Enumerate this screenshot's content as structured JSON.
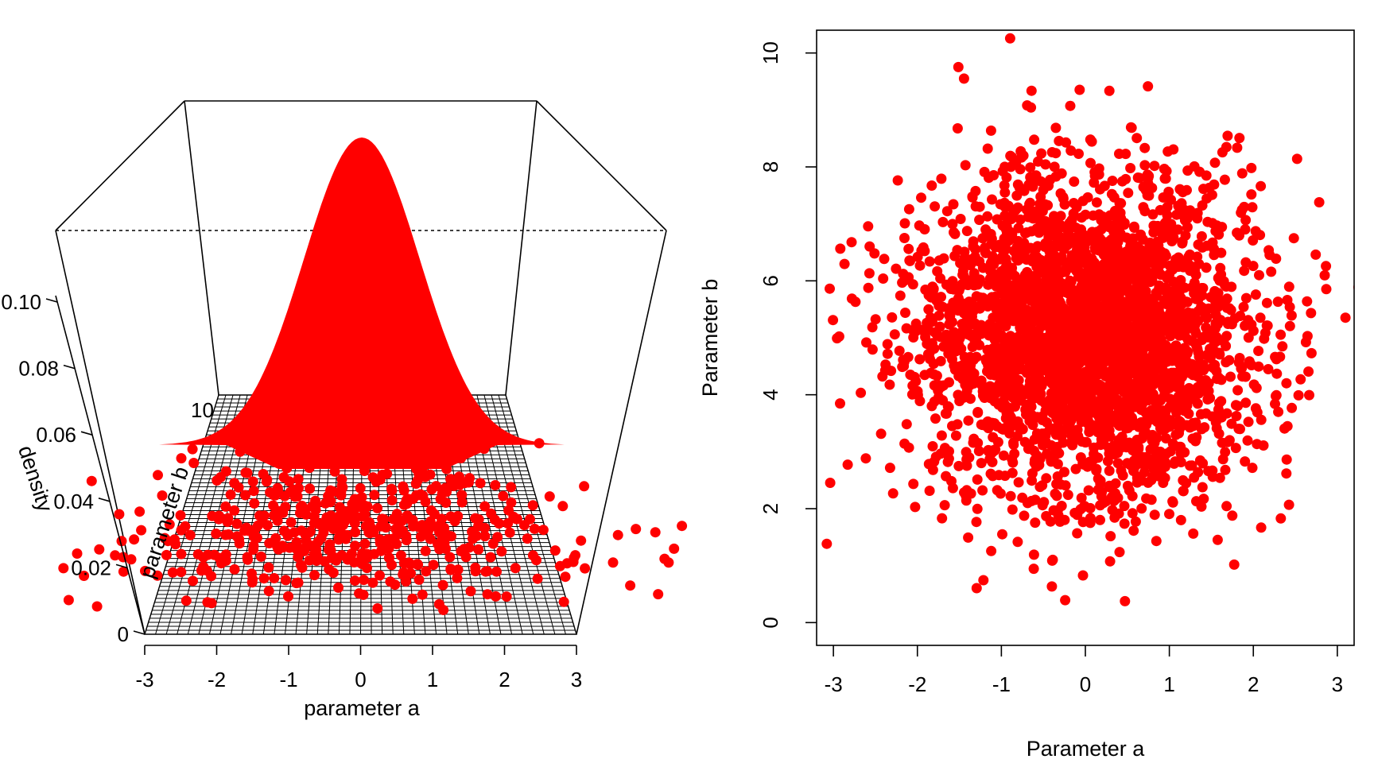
{
  "chart_data": [
    {
      "type": "surface3d",
      "title": "",
      "xlabel": "parameter a",
      "ylabel": "parameter b",
      "zlabel": "density",
      "xlim": [
        -3,
        3
      ],
      "ylim": [
        0,
        10
      ],
      "zlim": [
        0,
        0.12
      ],
      "x_ticks": [
        "-3",
        "-2",
        "-1",
        "0",
        "1",
        "2",
        "3"
      ],
      "y_ticks_visible": [
        "10"
      ],
      "z_ticks": [
        "0",
        "0.02",
        "0.04",
        "0.06",
        "0.08",
        "0.10"
      ],
      "surface": {
        "distribution": "bivariate normal",
        "mean": [
          0,
          5
        ],
        "sd": [
          1,
          1.4
        ],
        "peak_density": 0.113,
        "color": "#ff0000",
        "grid_color": "#000000"
      },
      "points": {
        "color": "#ff0000",
        "description": "posterior samples scattered over the base plane"
      }
    },
    {
      "type": "scatter",
      "title": "",
      "xlabel": "Parameter a",
      "ylabel": "Parameter b",
      "xlim": [
        -3.2,
        3.2
      ],
      "ylim": [
        -0.4,
        10.4
      ],
      "x_ticks": [
        "-3",
        "-2",
        "-1",
        "0",
        "1",
        "2",
        "3"
      ],
      "y_ticks": [
        "0",
        "2",
        "4",
        "6",
        "8",
        "10"
      ],
      "series": [
        {
          "color": "#ff0000",
          "n_points_approx": 5000,
          "center": [
            0,
            5
          ],
          "sd": [
            1,
            1.4
          ]
        }
      ],
      "contour_color": "#add8e6",
      "grid": false
    }
  ]
}
